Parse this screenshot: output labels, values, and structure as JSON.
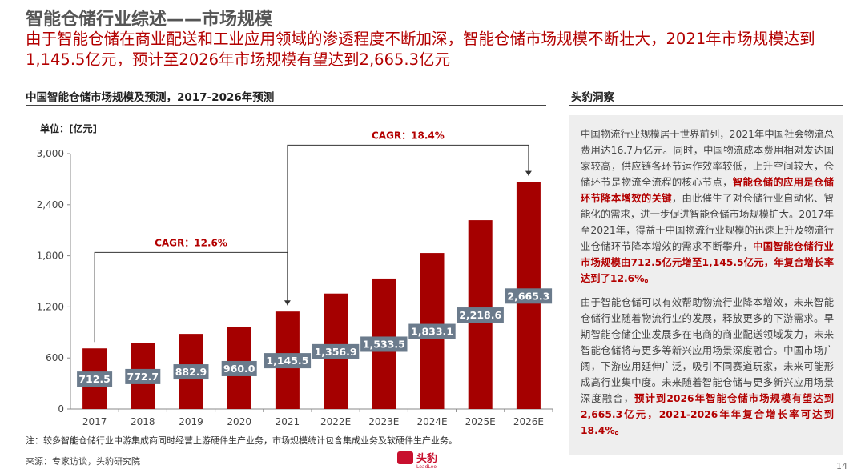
{
  "header": {
    "title": "智能仓储行业综述——市场规模",
    "subtitle": "由于智能仓储在商业配送和工业应用领域的渗透程度不断加深，智能仓储市场规模不断壮大，2021年市场规模达到1,145.5亿元，预计至2026年市场规模有望达到2,665.3亿元"
  },
  "chart_section": {
    "heading": "中国智能仓储市场规模及预测，2017-2026年预测",
    "unit": "单位：[亿元]"
  },
  "chart_data": {
    "type": "bar",
    "title": "中国智能仓储市场规模及预测，2017-2026年预测",
    "categories": [
      "2017",
      "2018",
      "2019",
      "2020",
      "2021",
      "2022E",
      "2023E",
      "2024E",
      "2025E",
      "2026E"
    ],
    "values": [
      712.5,
      772.7,
      882.9,
      960.0,
      1145.5,
      1356.9,
      1533.5,
      1833.1,
      2218.6,
      2665.3
    ],
    "value_labels": [
      "712.5",
      "772.7",
      "882.9",
      "960.0",
      "1,145.5",
      "1,356.9",
      "1,533.5",
      "1,833.1",
      "2,218.6",
      "2,665.3"
    ],
    "ylim": [
      0,
      3000
    ],
    "yticks": [
      0,
      600,
      1200,
      1800,
      2400,
      3000
    ],
    "ytick_labels": [
      "0",
      "600",
      "1,200",
      "1,800",
      "2,400",
      "3,000"
    ],
    "ylabel": "单位：[亿元]",
    "xlabel": "",
    "grid": false,
    "bar_color": "#a50000",
    "label_box_color": "#6b7b8c",
    "annotations": [
      {
        "text": "CAGR：12.6%",
        "from": "2017",
        "to": "2021",
        "level": 1840
      },
      {
        "text": "CAGR：18.4%",
        "from": "2021",
        "to": "2026E",
        "level": 3100
      }
    ]
  },
  "insight": {
    "heading": "头豹洞察",
    "p1_a": "中国物流行业规模居于世界前列，2021年中国社会物流总费用达16.7万亿元。同时，中国物流成本费用相对发达国家较高，供应链各环节运作效率较低，上升空间较大，仓储环节是物流全流程的核心节点，",
    "p1_b": "智能仓储的应用是仓储环节降本增效的关键",
    "p1_c": "，由此催生了对仓储行业自动化、智能化的需求，进一步促进智能仓储市场规模扩大。2017年至2021年，得益于中国物流行业规模的迅速上升及物流行业仓储环节降本增效的需求不断攀升，",
    "p1_d": "中国智能仓储行业市场规模由712.5亿元增至1,145.5亿元，年复合增长率达到了12.6%。",
    "p2_a": "由于智能仓储可以有效帮助物流行业降本增效，未来智能仓储行业随着物流行业的发展，释放更多的下游需求。早期智能仓储企业发展多在电商的商业配送领域发力，未来智能仓储将与更多等新兴应用场景深度融合。中国市场广阔，下游应用延伸广泛，吸引不同赛道玩家，未来可能形成高行业集中度。未来随着智能仓储与更多新兴应用场景深度融合，",
    "p2_b": "预计到2026年智能仓储市场规模有望达到2,665.3亿元，2021-2026年年复合增长率可达到18.4%。"
  },
  "footer": {
    "note": "注：较多智能仓储行业中游集成商同时经营上游硬件生产业务，市场规模统计包含集成业务及软硬件生产业务。",
    "source": "来源：专家访谈，头豹研究院",
    "logo_text": "头豹",
    "logo_sub": "LeadLeo",
    "page_number": "14"
  }
}
